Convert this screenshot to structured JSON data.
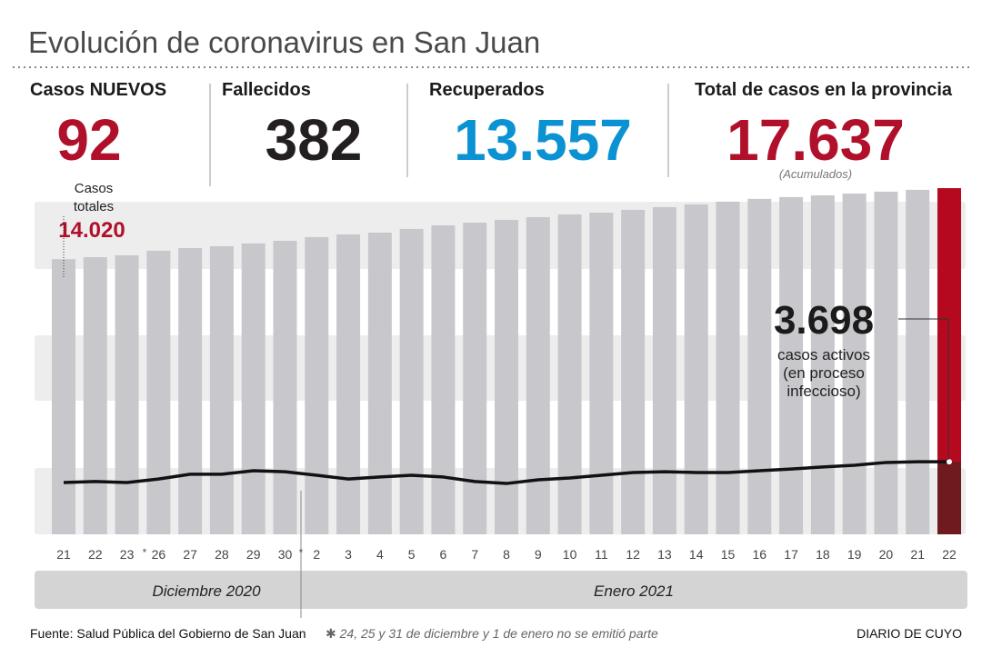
{
  "title": "Evolución de coronavirus en San Juan",
  "stats": [
    {
      "label": "Casos NUEVOS",
      "value": "92",
      "color": "#b0102a"
    },
    {
      "label": "Fallecidos",
      "value": "382",
      "color": "#231f20"
    },
    {
      "label": "Recuperados",
      "value": "13.557",
      "color": "#0b92d3"
    },
    {
      "label": "Total de casos en la provincia",
      "value": "17.637",
      "color": "#b0102a",
      "note": "(Acumulados)"
    }
  ],
  "chart_data": {
    "type": "bar",
    "categories": [
      "21",
      "22",
      "23",
      "26",
      "27",
      "28",
      "29",
      "30",
      "2",
      "3",
      "4",
      "5",
      "6",
      "7",
      "8",
      "9",
      "10",
      "11",
      "12",
      "13",
      "14",
      "15",
      "16",
      "17",
      "18",
      "19",
      "20",
      "21",
      "22"
    ],
    "series": [
      {
        "name": "Casos totales",
        "color": "#c8c7cc",
        "highlight_color": "#b5091f",
        "values": [
          14020,
          14120,
          14215,
          14450,
          14585,
          14680,
          14820,
          14955,
          15140,
          15280,
          15370,
          15560,
          15740,
          15880,
          16020,
          16160,
          16300,
          16390,
          16530,
          16670,
          16810,
          16950,
          17090,
          17180,
          17270,
          17360,
          17460,
          17550,
          17637
        ]
      },
      {
        "name": "casos activos",
        "color": "#111111",
        "highlight_color": "#6e1a1f",
        "values": [
          2640,
          2690,
          2640,
          2820,
          3060,
          3060,
          3240,
          3190,
          3010,
          2820,
          2920,
          3010,
          2920,
          2690,
          2590,
          2780,
          2870,
          3010,
          3150,
          3190,
          3150,
          3150,
          3240,
          3330,
          3430,
          3520,
          3660,
          3700,
          3698
        ]
      }
    ],
    "ylim": [
      0,
      18000
    ],
    "break_mark": "*",
    "annotations": {
      "first_total": {
        "lines": [
          "Casos",
          "totales"
        ],
        "label": "14.020"
      },
      "last_active": {
        "label": "3.698",
        "lines": [
          "casos activos",
          "(en proceso",
          "infeccioso)"
        ]
      }
    },
    "periods": [
      {
        "label": "Diciembre 2020"
      },
      {
        "label": "Enero 2021"
      }
    ]
  },
  "footer": {
    "source": "Fuente: Salud Pública del Gobierno de San Juan",
    "note": "✱ 24, 25 y 31 de diciembre y 1 de enero no se emitió parte",
    "credit": "DIARIO DE CUYO"
  }
}
